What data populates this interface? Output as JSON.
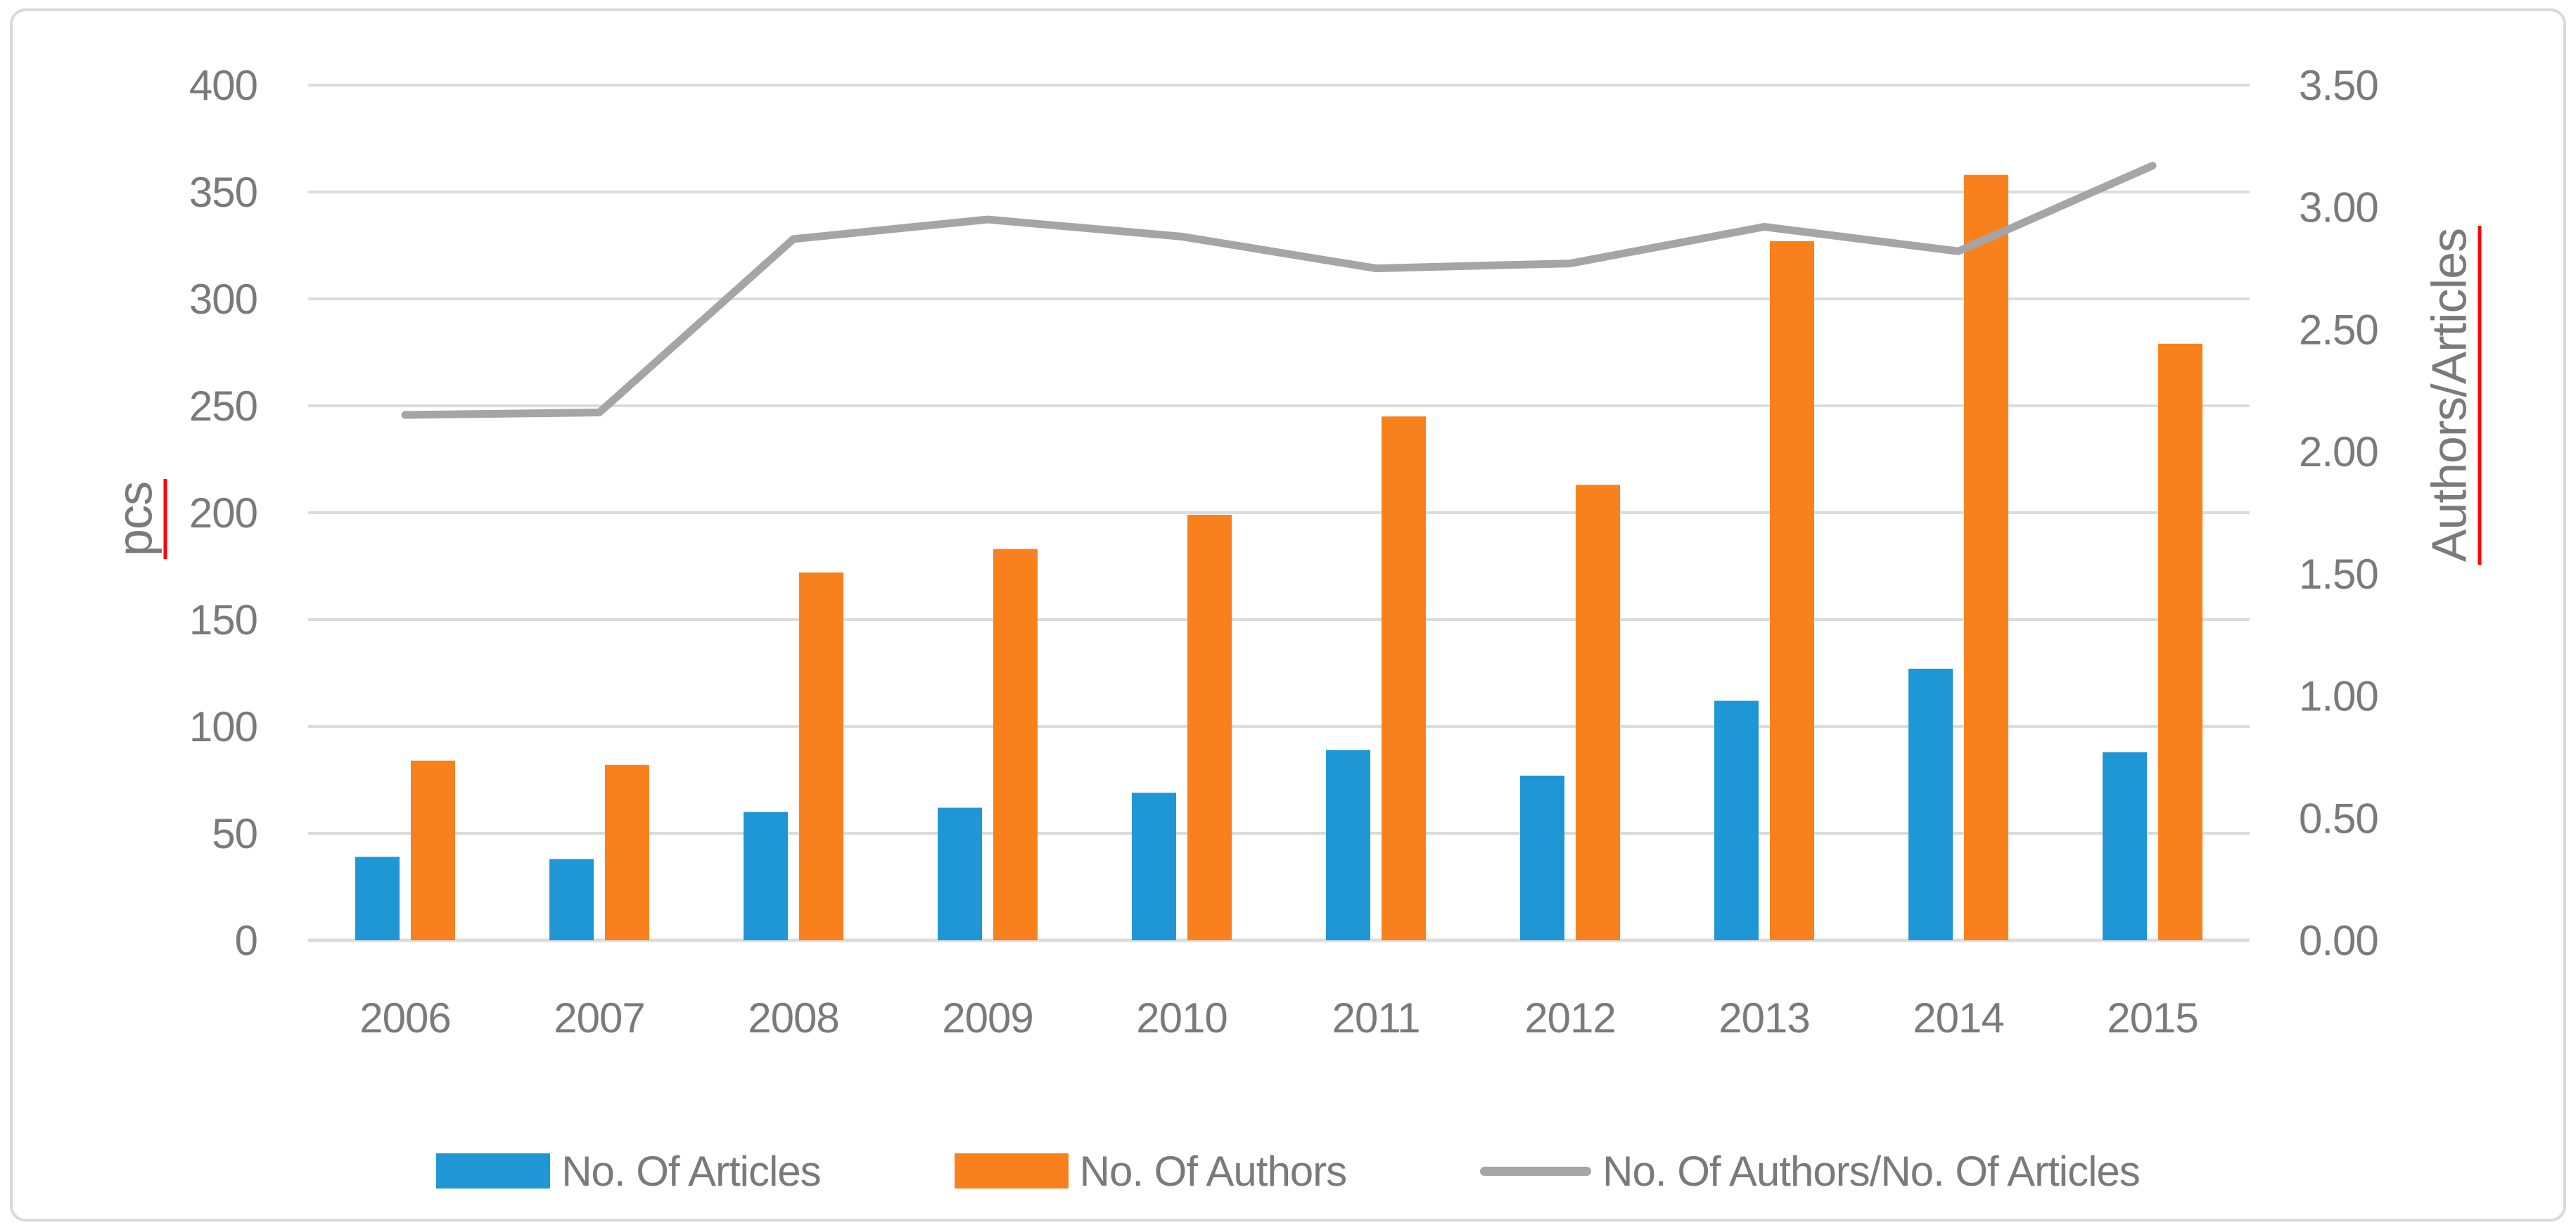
{
  "chart_data": {
    "type": "combo-bar-line",
    "title": "",
    "categories": [
      "2006",
      "2007",
      "2008",
      "2009",
      "2010",
      "2011",
      "2012",
      "2013",
      "2014",
      "2015"
    ],
    "series": [
      {
        "name": "No. Of Articles",
        "type": "bar",
        "axis": "left",
        "color": "#1f97d4",
        "values": [
          39,
          38,
          60,
          62,
          69,
          89,
          77,
          112,
          127,
          88
        ]
      },
      {
        "name": "No. Of Authors",
        "type": "bar",
        "axis": "left",
        "color": "#f8811e",
        "values": [
          84,
          82,
          172,
          183,
          199,
          245,
          213,
          327,
          358,
          279
        ]
      },
      {
        "name": "No. Of Authors/No. Of Articles",
        "type": "line",
        "axis": "right",
        "color": "#a5a5a5",
        "values": [
          2.15,
          2.16,
          2.87,
          2.95,
          2.88,
          2.75,
          2.77,
          2.92,
          2.82,
          3.17
        ]
      }
    ],
    "left_axis": {
      "label": "pcs",
      "min": 0,
      "max": 400,
      "step": 50,
      "ticks": [
        "0",
        "50",
        "100",
        "150",
        "200",
        "250",
        "300",
        "350",
        "400"
      ]
    },
    "right_axis": {
      "label": "Authors/Articles",
      "min": 0,
      "max": 3.5,
      "step": 0.5,
      "ticks": [
        "0.00",
        "0.50",
        "1.00",
        "1.50",
        "2.00",
        "2.50",
        "3.00",
        "3.50"
      ]
    },
    "grid": true,
    "legend_position": "bottom"
  },
  "colors": {
    "articles_bar": "#1f97d4",
    "authors_bar": "#f8811e",
    "ratio_line": "#a5a5a5",
    "gridline": "#dcdcdc",
    "axis_text": "#7a7a7a",
    "spellcheck_underline": "#ff0000",
    "frame_border": "#d9d9d9",
    "background": "#ffffff"
  }
}
